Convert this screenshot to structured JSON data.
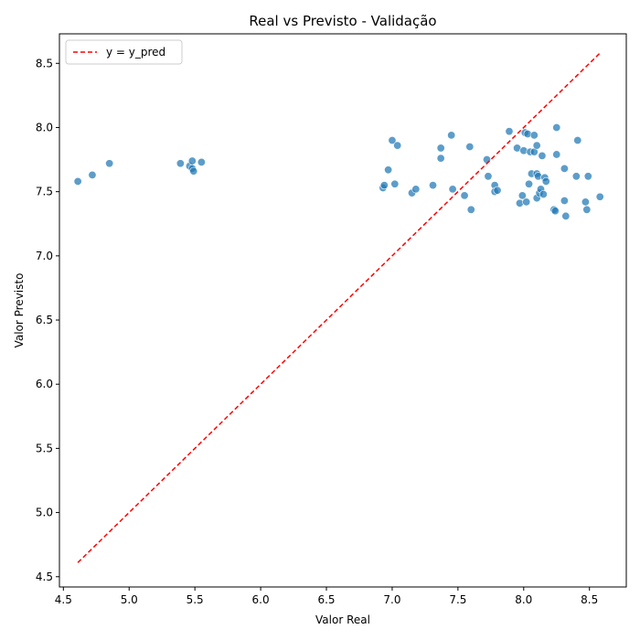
{
  "chart_data": {
    "type": "scatter",
    "title": "Real vs Previsto - Validação",
    "xlabel": "Valor Real",
    "ylabel": "Valor Previsto",
    "xlim": [
      4.47,
      8.78
    ],
    "ylim": [
      4.42,
      8.73
    ],
    "xticks": [
      4.5,
      5.0,
      5.5,
      6.0,
      6.5,
      7.0,
      7.5,
      8.0,
      8.5
    ],
    "yticks": [
      4.5,
      5.0,
      5.5,
      6.0,
      6.5,
      7.0,
      7.5,
      8.0,
      8.5
    ],
    "grid": false,
    "legend_position": "upper-left",
    "colors": {
      "points": "#1f77b4",
      "reference_line": "#ff0000"
    },
    "series": [
      {
        "kind": "points",
        "x": [
          4.61,
          4.72,
          4.85,
          5.39,
          5.46,
          5.48,
          5.48,
          5.49,
          5.55,
          6.93,
          6.94,
          6.97,
          7.0,
          7.02,
          7.04,
          7.15,
          7.18,
          7.31,
          7.37,
          7.37,
          7.45,
          7.46,
          7.55,
          7.59,
          7.6,
          7.72,
          7.73,
          7.78,
          7.78,
          7.8,
          7.89,
          7.95,
          7.97,
          7.99,
          8.0,
          8.01,
          8.02,
          8.03,
          8.04,
          8.05,
          8.06,
          8.08,
          8.08,
          8.1,
          8.1,
          8.1,
          8.11,
          8.12,
          8.13,
          8.14,
          8.15,
          8.16,
          8.17,
          8.23,
          8.24,
          8.25,
          8.25,
          8.31,
          8.31,
          8.32,
          8.4,
          8.41,
          8.47,
          8.48,
          8.49,
          8.58
        ],
        "y": [
          7.58,
          7.63,
          7.72,
          7.72,
          7.7,
          7.68,
          7.74,
          7.66,
          7.73,
          7.53,
          7.55,
          7.67,
          7.9,
          7.56,
          7.86,
          7.49,
          7.52,
          7.55,
          7.84,
          7.76,
          7.94,
          7.52,
          7.47,
          7.85,
          7.36,
          7.75,
          7.62,
          7.55,
          7.5,
          7.51,
          7.97,
          7.84,
          7.41,
          7.47,
          7.82,
          7.96,
          7.42,
          7.95,
          7.56,
          7.81,
          7.64,
          7.94,
          7.81,
          7.86,
          7.64,
          7.45,
          7.62,
          7.49,
          7.52,
          7.78,
          7.48,
          7.61,
          7.58,
          7.36,
          7.35,
          8.0,
          7.79,
          7.68,
          7.43,
          7.31,
          7.62,
          7.9,
          7.42,
          7.36,
          7.62,
          7.46
        ]
      },
      {
        "kind": "line",
        "name": "y = y_pred",
        "x": [
          4.61,
          8.58
        ],
        "y": [
          4.61,
          8.58
        ]
      }
    ]
  }
}
